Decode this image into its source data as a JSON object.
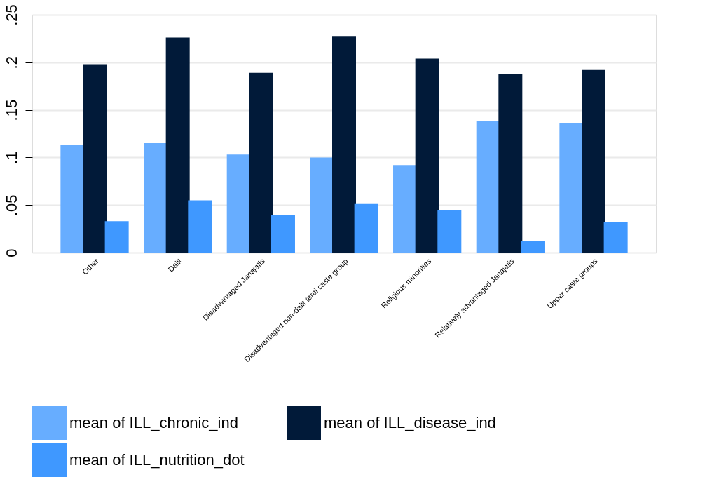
{
  "chart_data": {
    "type": "bar",
    "categories": [
      "Other",
      "Dalit",
      "Disadvantaged Janajatis",
      "Disadvantaged non-dalit terai caste group",
      "Religious minorities",
      "Relatively advantaged Janajatis",
      "Upper caste groups"
    ],
    "series": [
      {
        "name": "mean of ILL_chronic_ind",
        "color": "#67adff",
        "values": [
          0.113,
          0.115,
          0.103,
          0.1,
          0.092,
          0.138,
          0.136
        ]
      },
      {
        "name": "mean of ILL_disease_ind",
        "color": "#011a39",
        "values": [
          0.198,
          0.226,
          0.189,
          0.227,
          0.204,
          0.188,
          0.192
        ]
      },
      {
        "name": "mean of ILL_nutrition_dot",
        "color": "#3f98ff",
        "values": [
          0.033,
          0.055,
          0.039,
          0.051,
          0.045,
          0.012,
          0.032
        ]
      }
    ],
    "ylim": [
      0,
      0.25
    ],
    "yticks": [
      {
        "value": 0,
        "label": "0"
      },
      {
        "value": 0.05,
        "label": ".05"
      },
      {
        "value": 0.1,
        "label": ".1"
      },
      {
        "value": 0.15,
        "label": ".15"
      },
      {
        "value": 0.2,
        "label": ".2"
      },
      {
        "value": 0.25,
        "label": ".25"
      }
    ],
    "grid": "y",
    "legend": "bottom"
  }
}
